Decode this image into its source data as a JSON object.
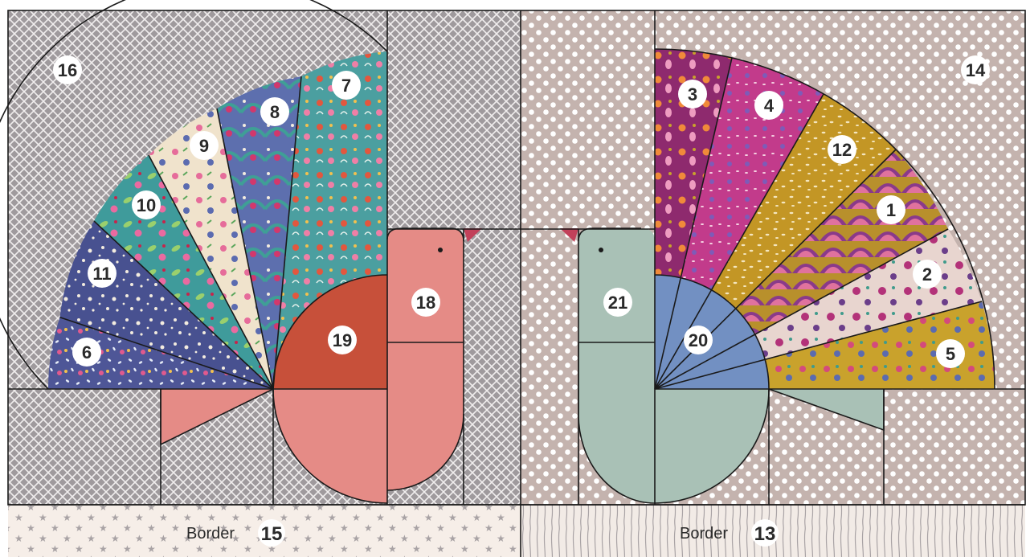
{
  "pieces": {
    "p1": "1",
    "p2": "2",
    "p3": "3",
    "p4": "4",
    "p5": "5",
    "p6": "6",
    "p7": "7",
    "p8": "8",
    "p9": "9",
    "p10": "10",
    "p11": "11",
    "p12": "12",
    "p14": "14",
    "p16": "16",
    "p18": "18",
    "p19": "19",
    "p20": "20",
    "p21": "21"
  },
  "borders": {
    "left": {
      "word": "Border",
      "number": "15"
    },
    "right": {
      "word": "Border",
      "number": "13"
    }
  },
  "colors": {
    "lattice_bg": "#9f9a9d",
    "dots_bg": "#c4b3ae",
    "star_bg": "#f6eee8",
    "stripe_bg": "#f2ebe6",
    "navy": "#4e5697",
    "purple": "#8e2a6e",
    "magenta": "#c23b8b",
    "mustard": "#c39625",
    "teal": "#4fa199",
    "cream": "#f0e3cc",
    "blue_tile": "#5d6fae",
    "coral_dark": "#c7503a",
    "coral_light": "#e58b86",
    "sage": "#a9c1b6",
    "slate_blue": "#7290c2",
    "beak": "#c2415a"
  }
}
